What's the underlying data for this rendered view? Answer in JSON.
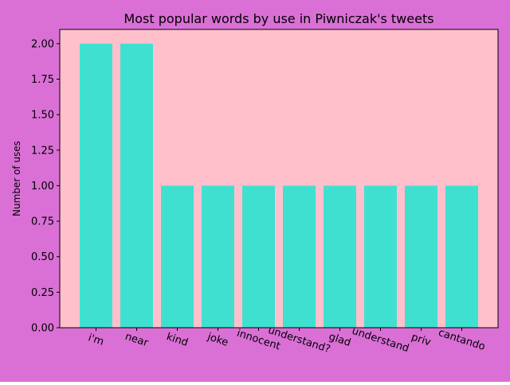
{
  "colors": {
    "figure_bg": "#da70d6",
    "plot_bg": "#ffc0cb",
    "bar": "#40e0d0",
    "axis": "#000000"
  },
  "chart_data": {
    "type": "bar",
    "title": "Most popular words by use in Piwniczak's tweets",
    "xlabel": "",
    "ylabel": "Number of uses",
    "categories": [
      "i'm",
      "near",
      "kind",
      "joke",
      "innocent",
      "understand?",
      "glad",
      "understand",
      "priv",
      "cantando"
    ],
    "values": [
      2,
      2,
      1,
      1,
      1,
      1,
      1,
      1,
      1,
      1
    ],
    "ylim": [
      0,
      2.1
    ],
    "yticks": [
      "0.00",
      "0.25",
      "0.50",
      "0.75",
      "1.00",
      "1.25",
      "1.50",
      "1.75",
      "2.00"
    ],
    "grid": false,
    "legend": "none"
  }
}
